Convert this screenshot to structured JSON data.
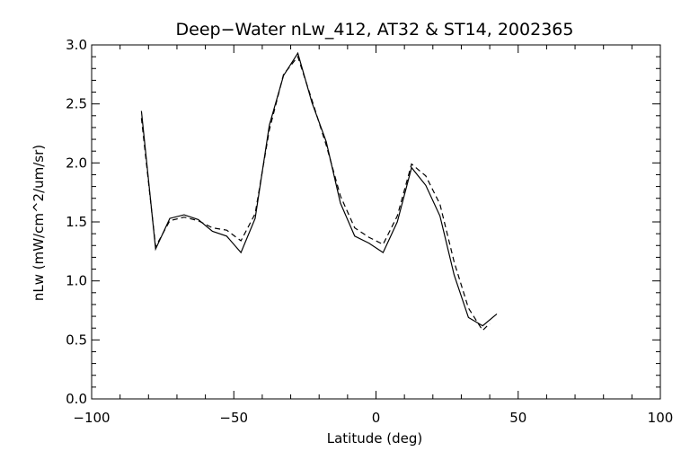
{
  "chart_data": {
    "type": "line",
    "title": "Deep−Water nLw_412, AT32 & ST14, 2002365",
    "xlabel": "Latitude (deg)",
    "ylabel": "nLw (mW/cm^2/um/sr)",
    "xlim": [
      -100,
      100
    ],
    "ylim": [
      0,
      3.0
    ],
    "x_ticks": [
      -100,
      -50,
      0,
      50,
      100
    ],
    "y_ticks": [
      0.0,
      0.5,
      1.0,
      1.5,
      2.0,
      2.5,
      3.0
    ],
    "x_tick_labels": [
      "−100",
      "−50",
      "0",
      "50",
      "100"
    ],
    "y_tick_labels": [
      "0.0",
      "0.5",
      "1.0",
      "1.5",
      "2.0",
      "2.5",
      "3.0"
    ],
    "grid": false,
    "series": [
      {
        "style": "solid",
        "color": "#000000",
        "x": [
          -82.5,
          -77.5,
          -72.5,
          -67.5,
          -62.5,
          -57.5,
          -52.5,
          -47.5,
          -42.5,
          -37.5,
          -32.5,
          -27.5,
          -22.5,
          -17.5,
          -12.5,
          -7.5,
          -2.5,
          2.5,
          7.5,
          12.5,
          17.5,
          22.5,
          27.5,
          32.5,
          37.5,
          42.5
        ],
        "y": [
          2.44,
          1.27,
          1.53,
          1.56,
          1.52,
          1.42,
          1.38,
          1.24,
          1.53,
          2.32,
          2.74,
          2.93,
          2.51,
          2.18,
          1.66,
          1.38,
          1.32,
          1.24,
          1.5,
          1.96,
          1.81,
          1.55,
          1.05,
          0.69,
          0.62,
          0.72
        ]
      },
      {
        "style": "dashed",
        "color": "#000000",
        "x": [
          -82.5,
          -77.5,
          -72.5,
          -67.5,
          -62.5,
          -57.5,
          -52.5,
          -47.5,
          -42.5,
          -37.5,
          -32.5,
          -27.5,
          -22.5,
          -17.5,
          -12.5,
          -7.5,
          -2.5,
          2.5,
          7.5,
          12.5,
          17.5,
          22.5,
          27.5,
          32.5,
          37.5,
          40.0
        ],
        "y": [
          2.38,
          1.29,
          1.51,
          1.54,
          1.51,
          1.45,
          1.43,
          1.34,
          1.57,
          2.28,
          2.75,
          2.9,
          2.53,
          2.15,
          1.72,
          1.45,
          1.37,
          1.31,
          1.55,
          1.99,
          1.89,
          1.65,
          1.16,
          0.77,
          0.58,
          0.64
        ]
      }
    ]
  }
}
